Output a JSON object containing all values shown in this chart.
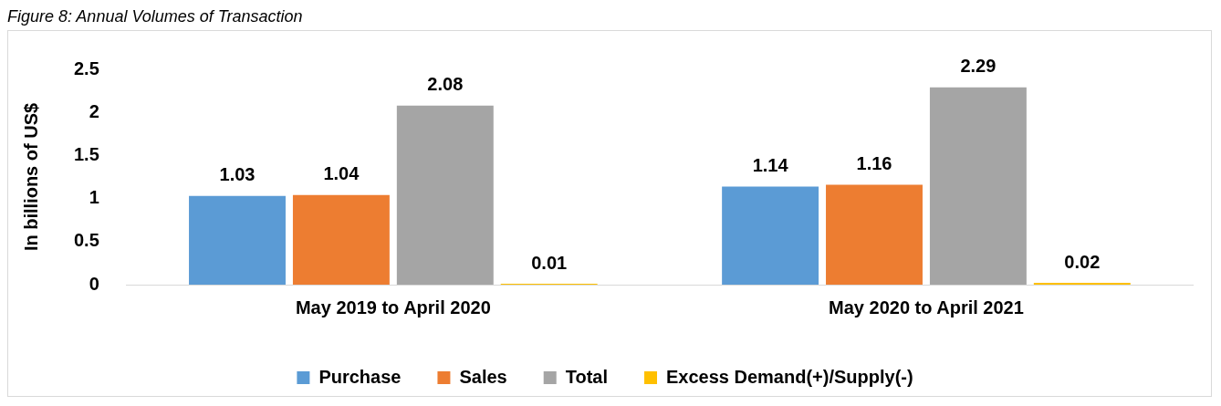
{
  "chart_data": {
    "type": "bar",
    "title": "Figure 8: Annual Volumes of Transaction",
    "ylabel": "In billions of US$",
    "categories": [
      "May 2019 to April 2020",
      "May 2020 to April 2021"
    ],
    "series": [
      {
        "name": "Purchase",
        "color": "#5b9bd5",
        "values": [
          1.03,
          1.14
        ]
      },
      {
        "name": "Sales",
        "color": "#ed7d31",
        "values": [
          1.04,
          1.16
        ]
      },
      {
        "name": "Total",
        "color": "#a5a5a5",
        "values": [
          2.08,
          2.29
        ]
      },
      {
        "name": "Excess Demand(+)/Supply(-)",
        "color": "#ffc000",
        "values": [
          0.01,
          0.02
        ]
      }
    ],
    "ylim": [
      0,
      2.5
    ],
    "yticks": [
      0,
      0.5,
      1,
      1.5,
      2,
      2.5
    ],
    "grid": false,
    "legend": "bottom",
    "data_labels": true
  }
}
